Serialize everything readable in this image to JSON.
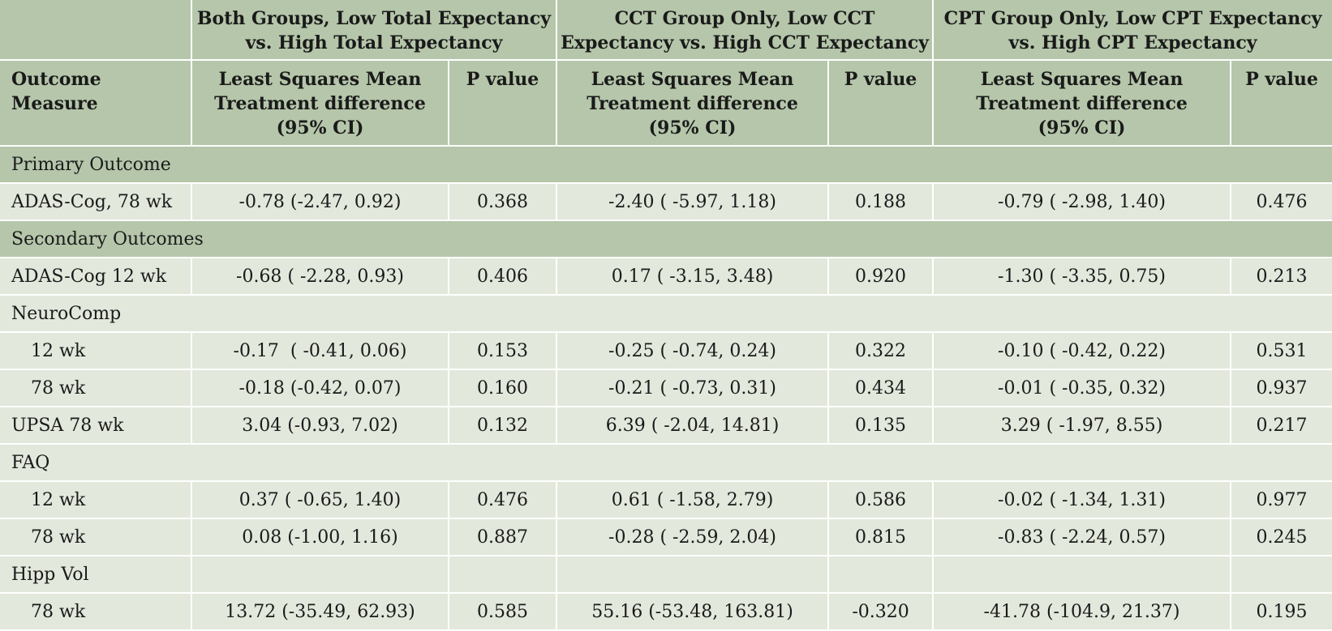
{
  "header": {
    "groups": [
      "Both Groups, Low Total Expectancy vs. High Total Expectancy",
      "CCT Group Only, Low CCT Expectancy vs. High CCT Expectancy",
      "CPT Group Only, Low CPT Expectancy vs. High CPT Expectancy"
    ],
    "outcome_measure": "Outcome Measure",
    "lsm_line1": "Least Squares Mean",
    "lsm_line2": "Treatment difference",
    "lsm_line3": "(95% CI)",
    "p_value": "P value"
  },
  "sections": {
    "primary": "Primary Outcome",
    "secondary": "Secondary Outcomes"
  },
  "rows": [
    {
      "label": "ADAS-Cog, 78 wk",
      "sub": false,
      "cells": [
        "-0.78 (-2.47, 0.92)",
        "0.368",
        "-2.40 ( -5.97, 1.18)",
        "0.188",
        "-0.79 ( -2.98, 1.40)",
        "0.476"
      ]
    },
    {
      "label": "ADAS-Cog 12 wk",
      "sub": false,
      "cells": [
        "-0.68 ( -2.28, 0.93)",
        "0.406",
        "0.17 ( -3.15, 3.48)",
        "0.920",
        "-1.30 ( -3.35, 0.75)",
        "0.213"
      ]
    },
    {
      "label": "NeuroComp",
      "group": true
    },
    {
      "label": "12 wk",
      "sub": true,
      "cells": [
        "-0.17  ( -0.41, 0.06)",
        "0.153",
        "-0.25 ( -0.74, 0.24)",
        "0.322",
        "-0.10 ( -0.42, 0.22)",
        "0.531"
      ]
    },
    {
      "label": "78 wk",
      "sub": true,
      "cells": [
        "-0.18 (-0.42, 0.07)",
        "0.160",
        "-0.21 ( -0.73, 0.31)",
        "0.434",
        "-0.01 ( -0.35, 0.32)",
        "0.937"
      ]
    },
    {
      "label": "UPSA 78 wk",
      "sub": false,
      "cells": [
        "3.04 (-0.93, 7.02)",
        "0.132",
        "6.39 ( -2.04, 14.81)",
        "0.135",
        "3.29 ( -1.97, 8.55)",
        "0.217"
      ]
    },
    {
      "label": "FAQ",
      "group": true
    },
    {
      "label": "12 wk",
      "sub": true,
      "cells": [
        "0.37 ( -0.65, 1.40)",
        "0.476",
        "0.61 ( -1.58, 2.79)",
        "0.586",
        "-0.02 ( -1.34, 1.31)",
        "0.977"
      ]
    },
    {
      "label": "78 wk",
      "sub": true,
      "cells": [
        "0.08 (-1.00, 1.16)",
        "0.887",
        "-0.28 ( -2.59, 2.04)",
        "0.815",
        "-0.83 ( -2.24, 0.57)",
        "0.245"
      ]
    },
    {
      "label": "Hipp Vol",
      "group": true
    },
    {
      "label": "78 wk",
      "sub": true,
      "cells": [
        "13.72 (-35.49, 62.93)",
        "0.585",
        "55.16 (-53.48, 163.81)",
        "-0.320",
        "-41.78 (-104.9, 21.37)",
        "0.195"
      ]
    }
  ],
  "colors": {
    "header_bg": "#b5c6aa",
    "row_bg": "#e2e8dc",
    "divider": "#ffffff"
  }
}
